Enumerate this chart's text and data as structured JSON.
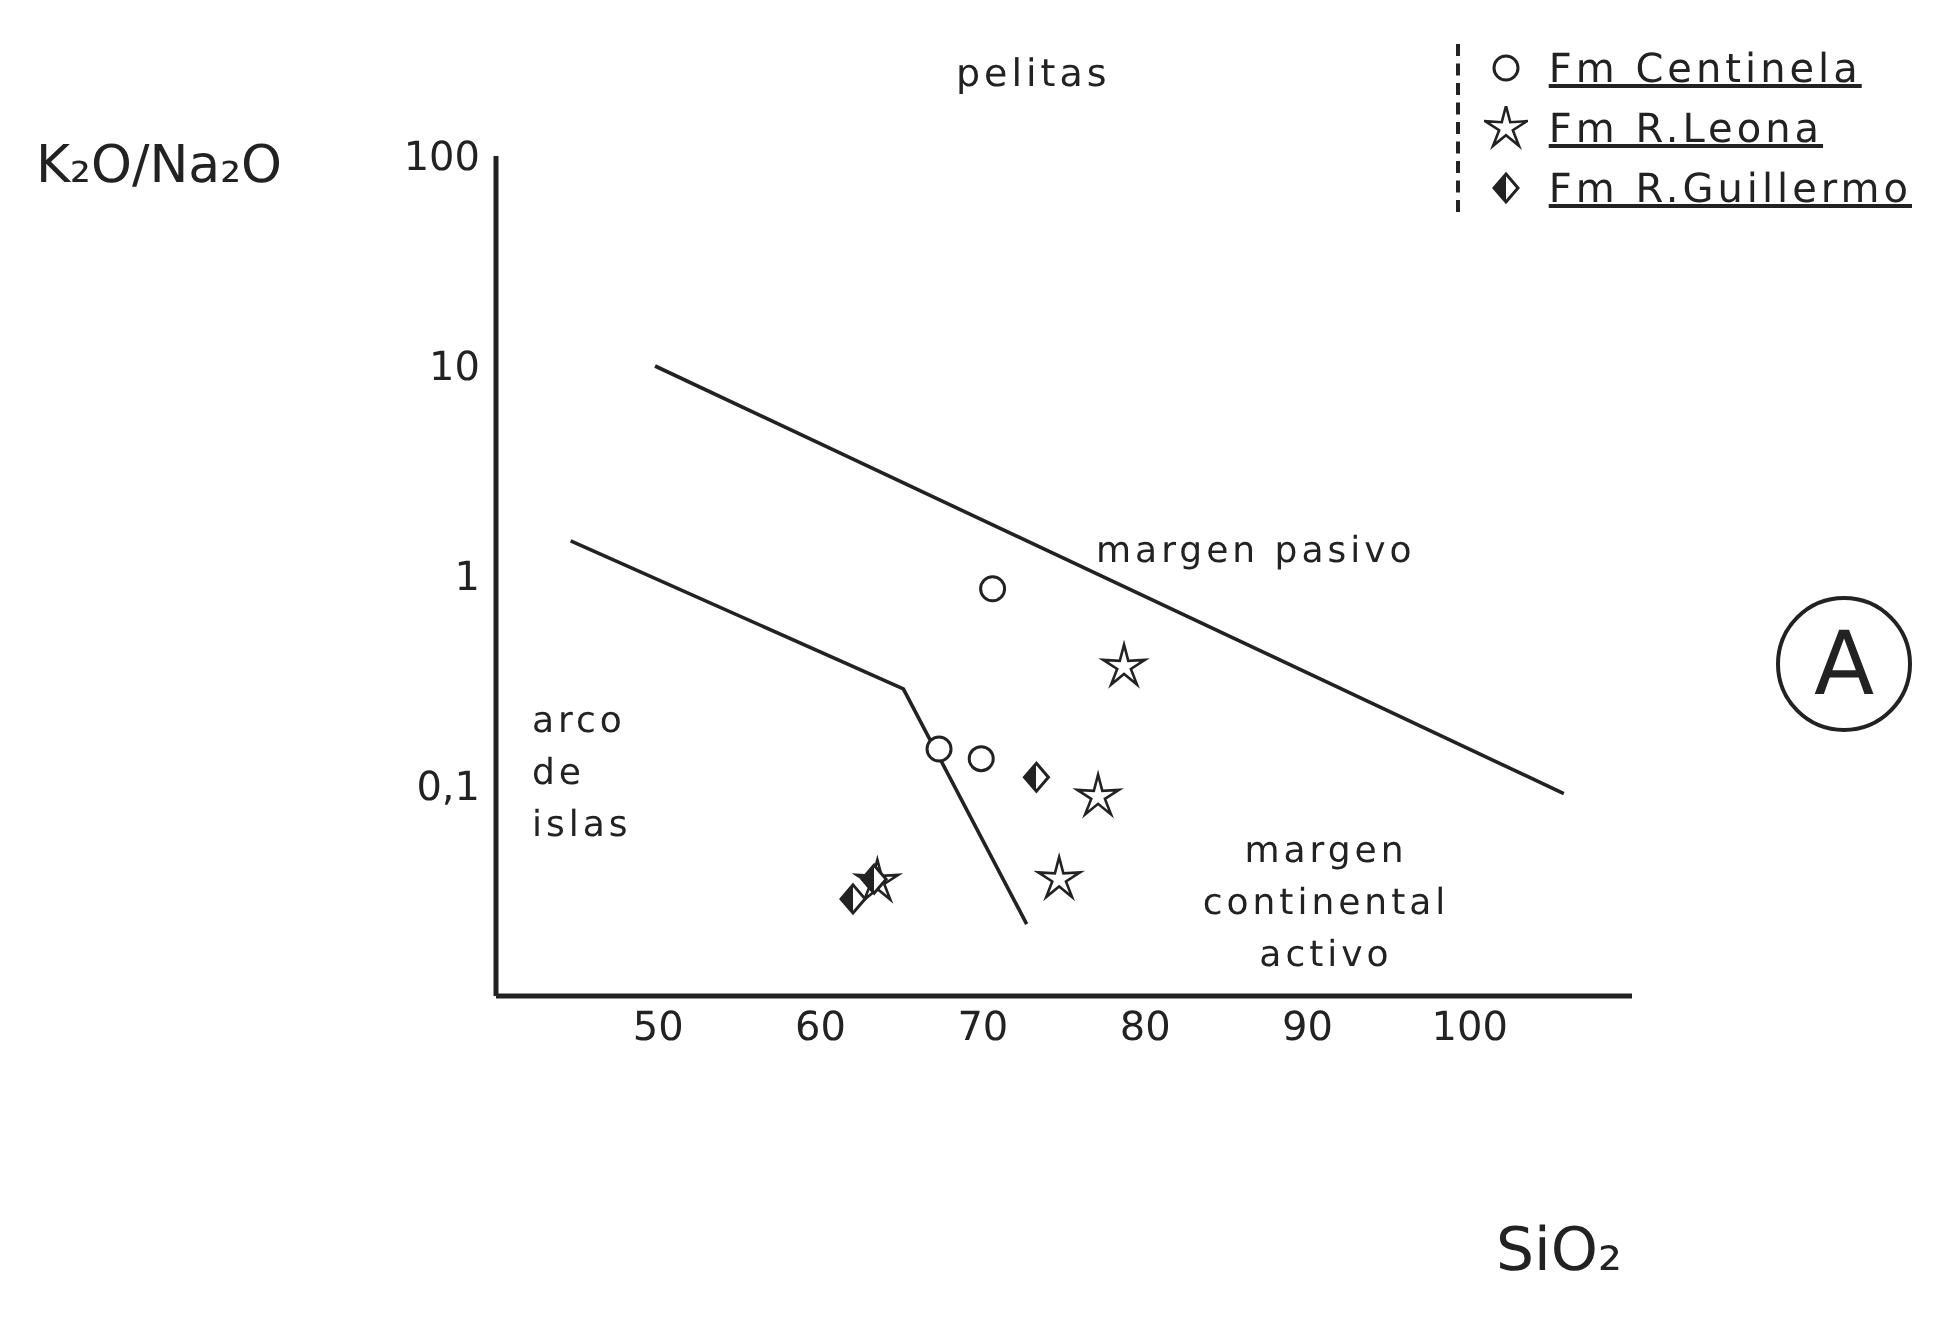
{
  "chart_data": {
    "type": "scatter",
    "xlabel": "SiO₂",
    "ylabel": "K₂O/Na₂O",
    "xlim": [
      40,
      110
    ],
    "xticks": [
      50,
      60,
      70,
      80,
      90,
      100
    ],
    "ylim": [
      0.01,
      100
    ],
    "yticks": [
      {
        "value": 0.1,
        "label": "0,1"
      },
      1,
      10,
      100
    ],
    "log": "y",
    "legend": "top right",
    "series": [
      {
        "name": "Fm Centinela",
        "color": "#222222",
        "marker": "circle",
        "x": [
          70.6,
          67.3,
          69.9
        ],
        "values": [
          0.87,
          0.15,
          0.135
        ]
      },
      {
        "name": "Fm R.Leona",
        "color": "#222222",
        "marker": "star",
        "x": [
          78.7,
          77.1,
          74.7,
          63.5
        ],
        "values": [
          0.37,
          0.089,
          0.036,
          0.035
        ]
      },
      {
        "name": "Fm R.Guillermo",
        "color": "#222222",
        "marker": "diamond",
        "x": [
          73.3,
          63.3,
          62
        ],
        "values": [
          0.11,
          0.036,
          0.029
        ]
      },
      {
        "type": "line",
        "color": "#222222",
        "x": [
          49.8,
          105.8
        ],
        "values": [
          10,
          0.092
        ]
      },
      {
        "type": "line",
        "color": "#222222",
        "x": [
          44.6,
          65.1,
          72.7
        ],
        "values": [
          1.47,
          0.29,
          0.022
        ]
      }
    ],
    "annotations": [
      "pelitas",
      "A",
      "margen pasivo",
      "arco de islas",
      "margen continental activo"
    ]
  }
}
